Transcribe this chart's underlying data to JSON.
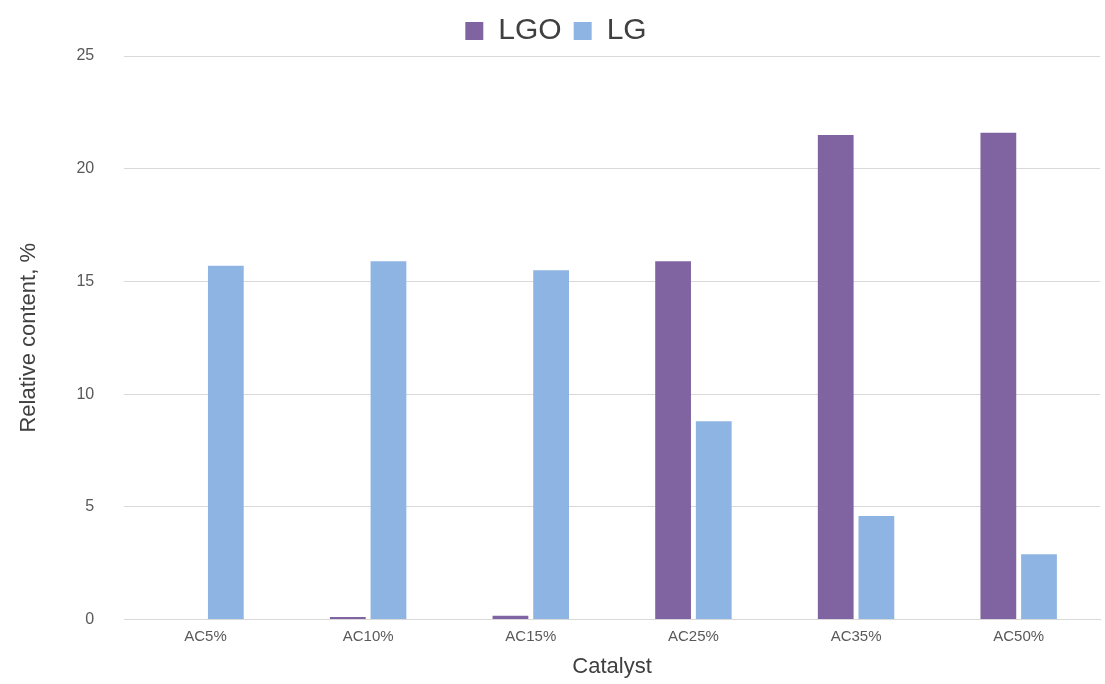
{
  "chart_data": {
    "type": "bar",
    "xlabel": "Catalyst",
    "ylabel": "Relative content, %",
    "categories": [
      "AC5%",
      "AC10%",
      "AC15%",
      "AC25%",
      "AC35%",
      "AC50%"
    ],
    "series": [
      {
        "name": "LGO",
        "color": "#8064a2",
        "values": [
          0,
          0.12,
          0.17,
          15.9,
          21.5,
          21.6
        ]
      },
      {
        "name": "LG",
        "color": "#8eb4e3",
        "values": [
          15.7,
          15.9,
          15.5,
          8.8,
          4.6,
          2.9
        ]
      }
    ],
    "ylim": [
      0,
      25
    ],
    "yticks": [
      0,
      5,
      10,
      15,
      20,
      25
    ],
    "grid": "y",
    "legend": "top"
  }
}
